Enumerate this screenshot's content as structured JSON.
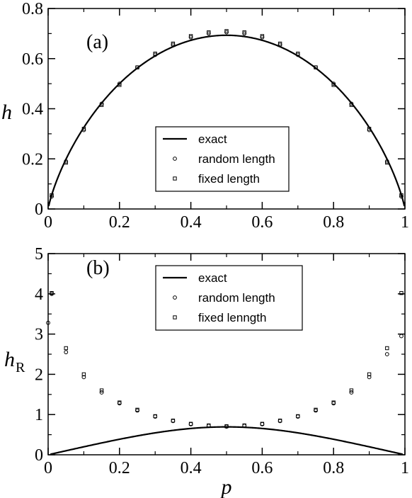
{
  "chart_data": [
    {
      "type": "line",
      "panel_label": "(a)",
      "ylabel": "h",
      "xlabel": "",
      "xlim": [
        0,
        1
      ],
      "ylim": [
        0,
        0.8
      ],
      "xticks": [
        "0",
        "0.2",
        "0.4",
        "0.6",
        "0.8",
        "1"
      ],
      "yticks": [
        "0",
        "0.2",
        "0.4",
        "0.6",
        "0.8"
      ],
      "grid": false,
      "legend_position": "center-bottom",
      "series": [
        {
          "name": "exact",
          "kind": "line",
          "color": "#000000",
          "formula": "binary entropy -p ln p - (1-p) ln(1-p)"
        },
        {
          "name": "random length",
          "kind": "marker",
          "marker": "circle",
          "x": [
            0.01,
            0.05,
            0.1,
            0.15,
            0.2,
            0.25,
            0.3,
            0.35,
            0.4,
            0.45,
            0.5,
            0.55,
            0.6,
            0.65,
            0.7,
            0.75,
            0.8,
            0.85,
            0.9,
            0.95,
            0.99
          ],
          "y": [
            0.05,
            0.19,
            0.315,
            0.42,
            0.5,
            0.565,
            0.615,
            0.655,
            0.685,
            0.7,
            0.705,
            0.7,
            0.685,
            0.655,
            0.615,
            0.565,
            0.5,
            0.42,
            0.315,
            0.19,
            0.05
          ]
        },
        {
          "name": "fixed length",
          "kind": "marker",
          "marker": "square",
          "x": [
            0.01,
            0.05,
            0.1,
            0.15,
            0.2,
            0.25,
            0.3,
            0.35,
            0.4,
            0.45,
            0.5,
            0.55,
            0.6,
            0.65,
            0.7,
            0.75,
            0.8,
            0.85,
            0.9,
            0.95,
            0.99
          ],
          "y": [
            0.055,
            0.185,
            0.32,
            0.415,
            0.495,
            0.565,
            0.62,
            0.66,
            0.69,
            0.705,
            0.71,
            0.705,
            0.69,
            0.66,
            0.62,
            0.565,
            0.495,
            0.415,
            0.32,
            0.185,
            0.055
          ]
        }
      ]
    },
    {
      "type": "line",
      "panel_label": "(b)",
      "ylabel": "h",
      "ylabel_subscript": "R",
      "xlabel": "p",
      "xlim": [
        0,
        1
      ],
      "ylim": [
        0,
        5
      ],
      "xticks": [
        "0",
        "0.2",
        "0.4",
        "0.6",
        "0.8",
        "1"
      ],
      "yticks": [
        "0",
        "1",
        "2",
        "3",
        "4",
        "5"
      ],
      "grid": false,
      "legend_position": "top-center",
      "series": [
        {
          "name": "exact",
          "kind": "line",
          "color": "#000000",
          "formula": "-ln(p^2 + (1-p)^2)"
        },
        {
          "name": "random length",
          "kind": "marker",
          "marker": "circle",
          "x": [
            0.0,
            0.01,
            0.05,
            0.1,
            0.15,
            0.2,
            0.25,
            0.3,
            0.35,
            0.4,
            0.45,
            0.5,
            0.55,
            0.6,
            0.65,
            0.7,
            0.75,
            0.8,
            0.85,
            0.9,
            0.95,
            0.99
          ],
          "y": [
            3.28,
            4.0,
            2.55,
            1.93,
            1.55,
            1.28,
            1.1,
            0.95,
            0.84,
            0.76,
            0.72,
            0.7,
            0.72,
            0.76,
            0.84,
            0.95,
            1.1,
            1.28,
            1.55,
            1.93,
            2.5,
            2.95
          ]
        },
        {
          "name": "fixed lenngth",
          "kind": "marker",
          "marker": "square",
          "x": [
            0.01,
            0.05,
            0.1,
            0.15,
            0.2,
            0.25,
            0.3,
            0.35,
            0.4,
            0.45,
            0.5,
            0.55,
            0.6,
            0.65,
            0.7,
            0.75,
            0.8,
            0.85,
            0.9,
            0.95,
            0.99
          ],
          "y": [
            4.02,
            2.65,
            2.0,
            1.6,
            1.3,
            1.12,
            0.96,
            0.85,
            0.77,
            0.73,
            0.71,
            0.73,
            0.77,
            0.85,
            0.96,
            1.12,
            1.3,
            1.6,
            2.0,
            2.65,
            4.02
          ]
        }
      ]
    }
  ]
}
